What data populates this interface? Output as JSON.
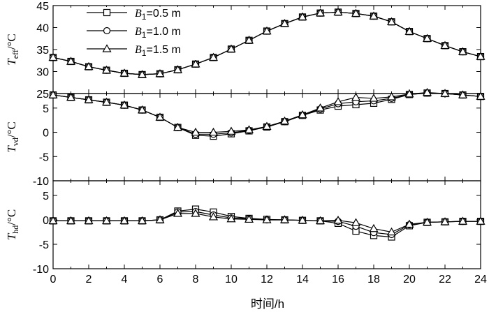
{
  "chart_data": {
    "type": "line",
    "xlabel": "时间/h",
    "x": [
      0,
      1,
      2,
      3,
      4,
      5,
      6,
      7,
      8,
      9,
      10,
      11,
      12,
      13,
      14,
      15,
      16,
      17,
      18,
      19,
      20,
      21,
      22,
      23,
      24
    ],
    "xlim": [
      0,
      24
    ],
    "xticks": [
      0,
      2,
      4,
      6,
      8,
      10,
      12,
      14,
      16,
      18,
      20,
      22,
      24
    ],
    "legend": {
      "placement": "top-left",
      "entries": [
        {
          "marker": "square",
          "sym": "B",
          "sub": "1",
          "rest": "=0.5 m"
        },
        {
          "marker": "circle",
          "sym": "B",
          "sub": "1",
          "rest": "=1.0 m"
        },
        {
          "marker": "triangle",
          "sym": "B",
          "sub": "1",
          "rest": "=1.5 m"
        }
      ]
    },
    "panels": [
      {
        "ylabel": {
          "sym": "T",
          "sub": "eff",
          "unit": "/°C"
        },
        "ylim": [
          25,
          45
        ],
        "yticks": [
          25,
          30,
          35,
          40,
          45
        ],
        "series": [
          {
            "marker": "square",
            "values": [
              33.2,
              32.3,
              31.1,
              30.3,
              29.6,
              29.3,
              29.5,
              30.4,
              31.7,
              33.2,
              35.1,
              37.1,
              39.2,
              40.9,
              42.4,
              43.3,
              43.5,
              43.2,
              42.6,
              41.3,
              39.1,
              37.5,
              35.9,
              34.5,
              33.4
            ]
          },
          {
            "marker": "circle",
            "values": [
              33.2,
              32.3,
              31.1,
              30.3,
              29.6,
              29.3,
              29.5,
              30.4,
              31.7,
              33.2,
              35.1,
              37.1,
              39.2,
              40.9,
              42.4,
              43.3,
              43.5,
              43.2,
              42.6,
              41.3,
              39.1,
              37.5,
              35.9,
              34.5,
              33.4
            ]
          },
          {
            "marker": "triangle",
            "values": [
              33.2,
              32.3,
              31.1,
              30.3,
              29.6,
              29.3,
              29.5,
              30.4,
              31.7,
              33.2,
              35.1,
              37.1,
              39.2,
              40.9,
              42.4,
              43.3,
              43.5,
              43.2,
              42.6,
              41.3,
              39.1,
              37.5,
              35.9,
              34.5,
              33.4
            ]
          }
        ]
      },
      {
        "ylabel": {
          "sym": "T",
          "sub": "vd",
          "unit": "/°C"
        },
        "ylim": [
          -10,
          8
        ],
        "yticks": [
          -10,
          -5,
          0,
          5
        ],
        "series": [
          {
            "marker": "square",
            "values": [
              7.7,
              7.2,
              6.7,
              6.2,
              5.6,
              4.6,
              3.1,
              1.0,
              -0.6,
              -0.8,
              -0.3,
              0.3,
              1.1,
              2.2,
              3.5,
              4.6,
              5.4,
              5.7,
              6.0,
              6.8,
              7.8,
              8.1,
              8.0,
              7.7,
              7.4
            ]
          },
          {
            "marker": "circle",
            "values": [
              7.7,
              7.2,
              6.7,
              6.2,
              5.6,
              4.6,
              3.1,
              1.0,
              -0.4,
              -0.4,
              -0.1,
              0.4,
              1.1,
              2.2,
              3.5,
              4.8,
              5.9,
              6.3,
              6.5,
              7.0,
              7.8,
              8.1,
              8.0,
              7.7,
              7.4
            ]
          },
          {
            "marker": "triangle",
            "values": [
              7.7,
              7.2,
              6.7,
              6.2,
              5.6,
              4.6,
              3.1,
              1.0,
              0.0,
              0.0,
              0.2,
              0.5,
              1.2,
              2.3,
              3.6,
              5.0,
              6.3,
              7.2,
              7.0,
              7.3,
              7.9,
              8.2,
              8.0,
              7.7,
              7.4
            ]
          }
        ]
      },
      {
        "ylabel": {
          "sym": "T",
          "sub": "hd",
          "unit": "/°C"
        },
        "ylim": [
          -10,
          8
        ],
        "yticks": [
          -10,
          -5,
          0,
          5
        ],
        "series": [
          {
            "marker": "square",
            "values": [
              -0.2,
              -0.2,
              -0.2,
              -0.2,
              -0.2,
              -0.2,
              0.0,
              1.8,
              2.2,
              1.6,
              0.7,
              0.3,
              0.1,
              0.0,
              -0.1,
              -0.2,
              -0.7,
              -2.3,
              -3.2,
              -3.5,
              -1.2,
              -0.5,
              -0.4,
              -0.3,
              -0.3
            ]
          },
          {
            "marker": "circle",
            "values": [
              -0.2,
              -0.2,
              -0.2,
              -0.2,
              -0.2,
              -0.2,
              0.0,
              1.6,
              1.7,
              1.0,
              0.4,
              0.2,
              0.0,
              0.0,
              -0.1,
              -0.2,
              -0.3,
              -1.3,
              -2.6,
              -3.0,
              -1.0,
              -0.5,
              -0.4,
              -0.3,
              -0.3
            ]
          },
          {
            "marker": "triangle",
            "values": [
              -0.2,
              -0.2,
              -0.2,
              -0.2,
              -0.2,
              -0.2,
              0.0,
              1.3,
              1.3,
              0.6,
              0.2,
              0.1,
              0.0,
              0.0,
              -0.1,
              -0.2,
              -0.1,
              -0.6,
              -1.8,
              -2.5,
              -0.9,
              -0.5,
              -0.4,
              -0.3,
              -0.3
            ]
          }
        ]
      }
    ]
  }
}
